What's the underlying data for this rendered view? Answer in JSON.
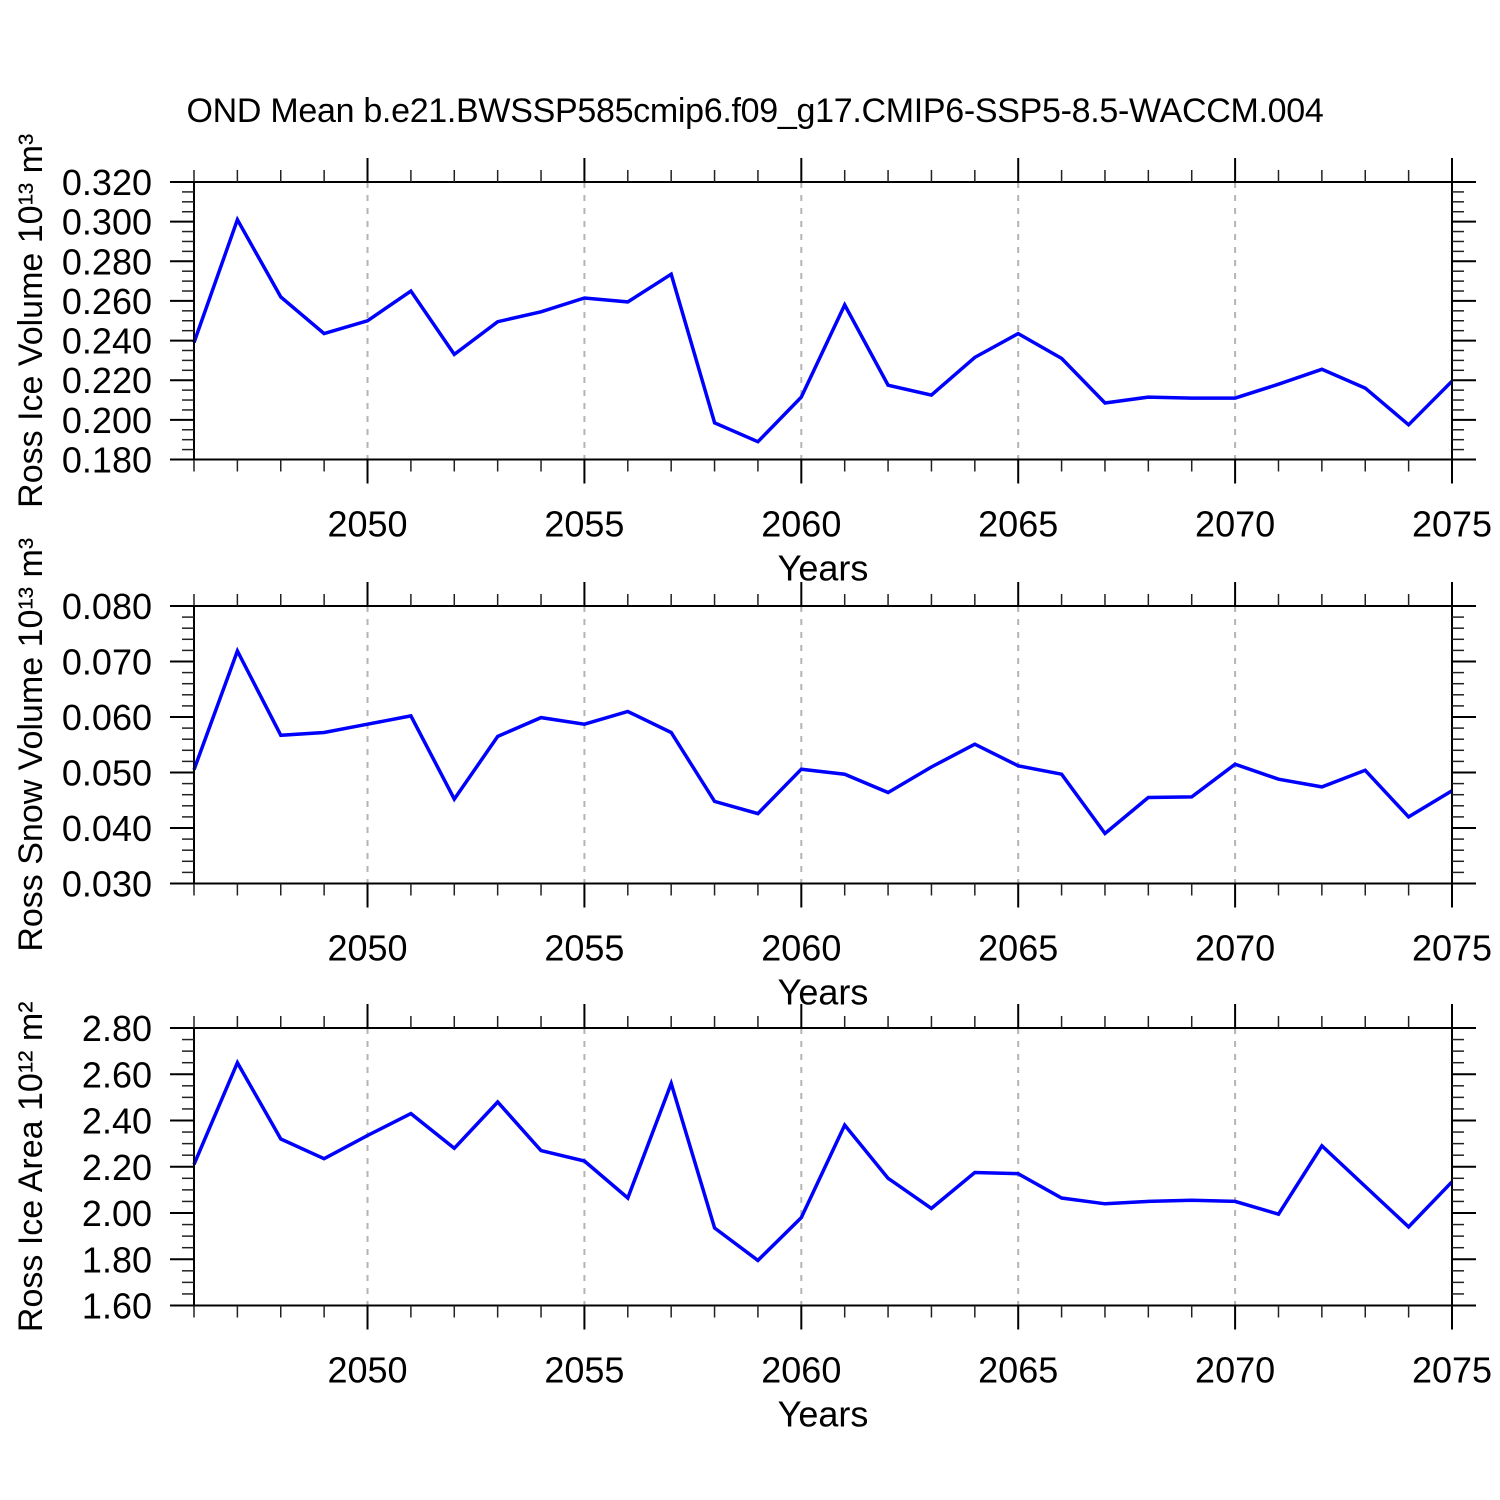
{
  "page": {
    "background": "#ffffff"
  },
  "chart_data": [
    {
      "panel": "ross-ice-volume",
      "type": "line",
      "title": "OND Mean b.e21.BWSSP585cmip6.f09_g17.CMIP6-SSP5-8.5-WACCM.004",
      "xlabel": "Years",
      "ylabel": "Ross Ice Volume 10¹³ m³",
      "line_color": "#0000ff",
      "grid": {
        "vertical_dashed": true,
        "color": "#b4b4b4"
      },
      "xlim": [
        2046,
        2075
      ],
      "ylim": [
        0.18,
        0.32
      ],
      "xticks_major": [
        2050,
        2055,
        2060,
        2065,
        2070,
        2075
      ],
      "xtick_labels": [
        "2050",
        "2055",
        "2060",
        "2065",
        "2070",
        "2075"
      ],
      "xticks_minor_step": 1,
      "yticks_major": [
        0.18,
        0.2,
        0.22,
        0.24,
        0.26,
        0.28,
        0.3,
        0.32
      ],
      "ytick_labels": [
        "0.180",
        "0.200",
        "0.220",
        "0.240",
        "0.260",
        "0.280",
        "0.300",
        "0.320"
      ],
      "yticks_minor_step": 0.005,
      "x": [
        2046,
        2047,
        2048,
        2049,
        2050,
        2051,
        2052,
        2053,
        2054,
        2055,
        2056,
        2057,
        2058,
        2059,
        2060,
        2061,
        2062,
        2063,
        2064,
        2065,
        2066,
        2067,
        2068,
        2069,
        2070,
        2071,
        2072,
        2073,
        2074,
        2075
      ],
      "values": [
        0.239,
        0.301,
        0.262,
        0.2435,
        0.25,
        0.265,
        0.233,
        0.2495,
        0.2545,
        0.2615,
        0.2595,
        0.2735,
        0.1985,
        0.189,
        0.2115,
        0.258,
        0.2175,
        0.2125,
        0.2315,
        0.2435,
        0.231,
        0.2085,
        0.2115,
        0.211,
        0.211,
        0.218,
        0.2255,
        0.216,
        0.1975,
        0.2195
      ]
    },
    {
      "panel": "ross-snow-volume",
      "type": "line",
      "title": null,
      "xlabel": "Years",
      "ylabel": "Ross Snow Volume 10¹³ m³",
      "line_color": "#0000ff",
      "grid": {
        "vertical_dashed": true,
        "color": "#b4b4b4"
      },
      "xlim": [
        2046,
        2075
      ],
      "ylim": [
        0.03,
        0.08
      ],
      "xticks_major": [
        2050,
        2055,
        2060,
        2065,
        2070,
        2075
      ],
      "xtick_labels": [
        "2050",
        "2055",
        "2060",
        "2065",
        "2070",
        "2075"
      ],
      "xticks_minor_step": 1,
      "yticks_major": [
        0.03,
        0.04,
        0.05,
        0.06,
        0.07,
        0.08
      ],
      "ytick_labels": [
        "0.030",
        "0.040",
        "0.050",
        "0.060",
        "0.070",
        "0.080"
      ],
      "yticks_minor_step": 0.002,
      "x": [
        2046,
        2047,
        2048,
        2049,
        2050,
        2051,
        2052,
        2053,
        2054,
        2055,
        2056,
        2057,
        2058,
        2059,
        2060,
        2061,
        2062,
        2063,
        2064,
        2065,
        2066,
        2067,
        2068,
        2069,
        2070,
        2071,
        2072,
        2073,
        2074,
        2075
      ],
      "values": [
        0.0505,
        0.0719,
        0.0567,
        0.0572,
        0.0587,
        0.0602,
        0.0452,
        0.0565,
        0.0599,
        0.0587,
        0.061,
        0.0572,
        0.0448,
        0.0426,
        0.0506,
        0.0497,
        0.0464,
        0.051,
        0.0551,
        0.0512,
        0.0497,
        0.039,
        0.0455,
        0.0456,
        0.0515,
        0.0488,
        0.0474,
        0.0504,
        0.042,
        0.0467
      ]
    },
    {
      "panel": "ross-ice-area",
      "type": "line",
      "title": null,
      "xlabel": "Years",
      "ylabel": "Ross Ice Area 10¹² m²",
      "line_color": "#0000ff",
      "grid": {
        "vertical_dashed": true,
        "color": "#b4b4b4"
      },
      "xlim": [
        2046,
        2075
      ],
      "ylim": [
        1.6,
        2.8
      ],
      "xticks_major": [
        2050,
        2055,
        2060,
        2065,
        2070,
        2075
      ],
      "xtick_labels": [
        "2050",
        "2055",
        "2060",
        "2065",
        "2070",
        "2075"
      ],
      "xticks_minor_step": 1,
      "yticks_major": [
        1.6,
        1.8,
        2.0,
        2.2,
        2.4,
        2.6,
        2.8
      ],
      "ytick_labels": [
        "1.60",
        "1.80",
        "2.00",
        "2.20",
        "2.40",
        "2.60",
        "2.80"
      ],
      "yticks_minor_step": 0.05,
      "x": [
        2046,
        2047,
        2048,
        2049,
        2050,
        2051,
        2052,
        2053,
        2054,
        2055,
        2056,
        2057,
        2058,
        2059,
        2060,
        2061,
        2062,
        2063,
        2064,
        2065,
        2066,
        2067,
        2068,
        2069,
        2070,
        2071,
        2072,
        2073,
        2074,
        2075
      ],
      "values": [
        2.21,
        2.65,
        2.32,
        2.235,
        2.335,
        2.43,
        2.28,
        2.48,
        2.27,
        2.225,
        2.065,
        2.56,
        1.935,
        1.795,
        1.98,
        2.38,
        2.15,
        2.02,
        2.175,
        2.17,
        2.065,
        2.04,
        2.05,
        2.055,
        2.05,
        1.995,
        2.29,
        2.115,
        1.94,
        2.135
      ]
    }
  ]
}
